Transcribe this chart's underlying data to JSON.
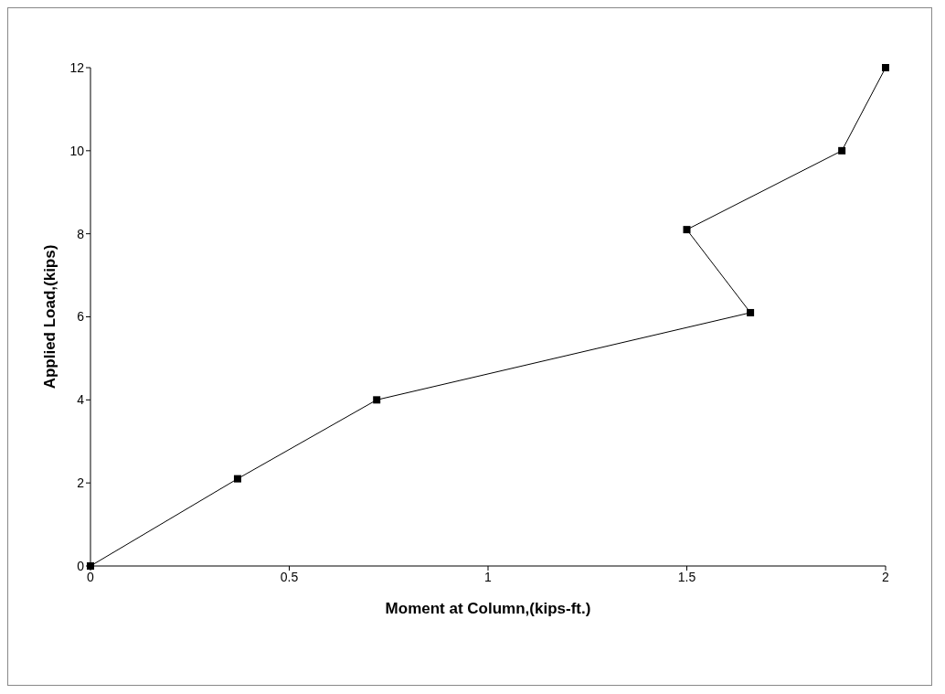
{
  "chart_data": {
    "type": "line",
    "xlabel": "Moment at Column,(kips-ft.)",
    "ylabel": "Applied Load,(kips)",
    "x": [
      0,
      0.37,
      0.72,
      1.66,
      1.5,
      1.89,
      2.0
    ],
    "series": [
      {
        "color": "#000000",
        "values": [
          0,
          2.1,
          4,
          6.1,
          8.1,
          10,
          12
        ]
      }
    ],
    "xlim": [
      0,
      2
    ],
    "xticks": [
      0,
      0.5,
      1,
      1.5,
      2
    ],
    "ylim": [
      0,
      12
    ],
    "yticks": [
      0,
      2,
      4,
      6,
      8,
      10,
      12
    ],
    "grid": false,
    "legend": false,
    "marker": "square",
    "line_style": "solid"
  }
}
